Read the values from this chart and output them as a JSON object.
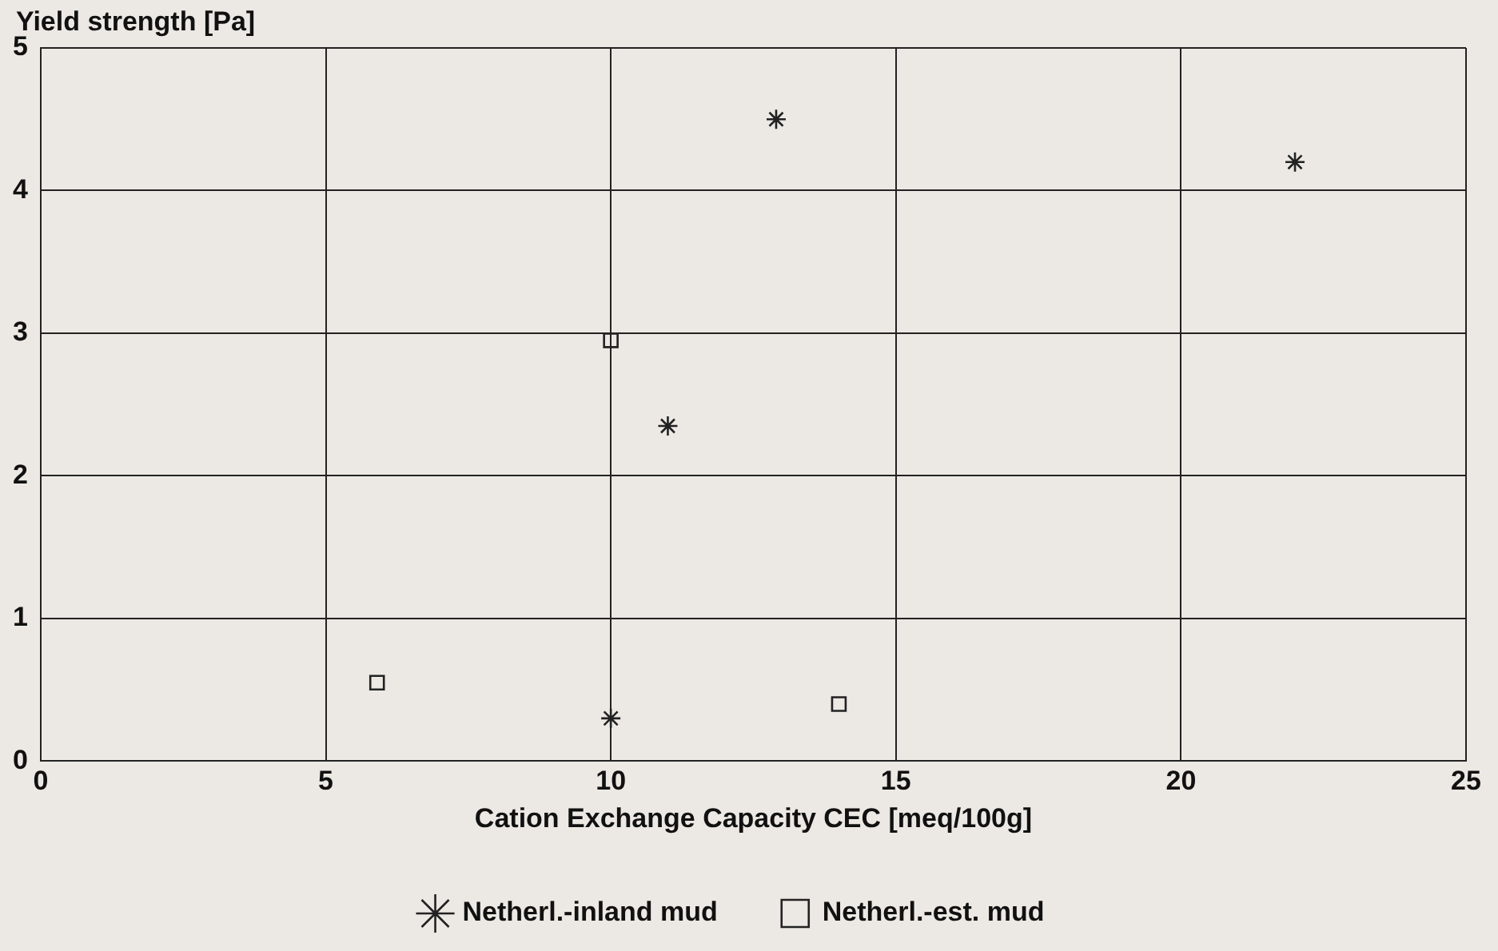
{
  "chart_data": {
    "type": "scatter",
    "xlabel": "Cation Exchange Capacity CEC [meq/100g]",
    "ylabel": "Yield strength [Pa]",
    "xlim": [
      0,
      25
    ],
    "xticks": [
      0,
      5,
      10,
      15,
      20,
      25
    ],
    "ylim": [
      0,
      5
    ],
    "yticks": [
      0,
      1,
      2,
      3,
      4,
      5
    ],
    "grid": true,
    "legend": "bottom",
    "series": [
      {
        "name": "Netherl.-inland mud",
        "color": "#222222",
        "marker": "cross",
        "x": [
          12.9,
          11.0,
          10.0,
          22.0
        ],
        "values": [
          4.5,
          2.35,
          0.3,
          4.2
        ]
      },
      {
        "name": "Netherl.-est. mud",
        "color": "#222222",
        "marker": "square",
        "x": [
          10.0,
          5.9,
          14.0
        ],
        "values": [
          2.95,
          0.55,
          0.4
        ]
      }
    ]
  }
}
